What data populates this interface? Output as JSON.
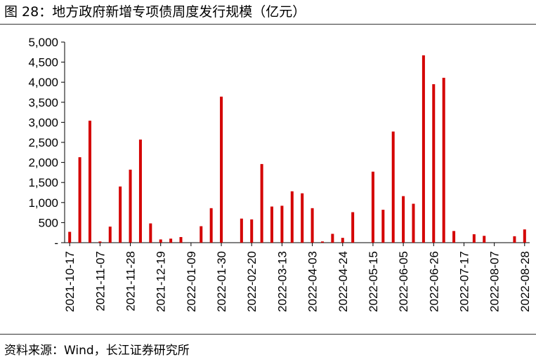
{
  "header": {
    "title": "图 28：地方政府新增专项债周度发行规模（亿元）"
  },
  "footer": {
    "source": "资料来源：Wind，长江证券研究所"
  },
  "colors": {
    "bar": "#d40000",
    "axis": "#000000"
  },
  "chart_data": {
    "type": "bar",
    "title": "图 28：地方政府新增专项债周度发行规模（亿元）",
    "xlabel": "",
    "ylabel": "",
    "ylim": [
      0,
      5000
    ],
    "yticks": [
      0,
      500,
      1000,
      1500,
      2000,
      2500,
      3000,
      3500,
      4000,
      4500,
      5000
    ],
    "ytick_labels": [
      "-",
      "500",
      "1,000",
      "1,500",
      "2,000",
      "2,500",
      "3,000",
      "3,500",
      "4,000",
      "4,500",
      "5,000"
    ],
    "x_tick_labels": [
      "2021-10-17",
      "2021-11-07",
      "2021-11-28",
      "2021-12-19",
      "2022-01-09",
      "2022-01-30",
      "2022-02-20",
      "2022-03-13",
      "2022-04-03",
      "2022-04-24",
      "2022-05-15",
      "2022-06-05",
      "2022-06-26",
      "2022-07-17",
      "2022-08-07",
      "2022-08-28"
    ],
    "grid": false,
    "legend": "none",
    "categories": [
      "2021-10-17",
      "2021-10-24",
      "2021-10-31",
      "2021-11-07",
      "2021-11-14",
      "2021-11-21",
      "2021-11-28",
      "2021-12-05",
      "2021-12-12",
      "2021-12-19",
      "2021-12-26",
      "2022-01-02",
      "2022-01-09",
      "2022-01-16",
      "2022-01-23",
      "2022-01-30",
      "2022-02-06",
      "2022-02-13",
      "2022-02-20",
      "2022-02-27",
      "2022-03-06",
      "2022-03-13",
      "2022-03-20",
      "2022-03-27",
      "2022-04-03",
      "2022-04-10",
      "2022-04-17",
      "2022-04-24",
      "2022-05-01",
      "2022-05-08",
      "2022-05-15",
      "2022-05-22",
      "2022-05-29",
      "2022-06-05",
      "2022-06-12",
      "2022-06-19",
      "2022-06-26",
      "2022-07-03",
      "2022-07-10",
      "2022-07-17",
      "2022-07-24",
      "2022-07-31",
      "2022-08-07",
      "2022-08-14",
      "2022-08-21",
      "2022-08-28"
    ],
    "values": [
      270,
      2130,
      3040,
      30,
      400,
      1400,
      1820,
      2570,
      480,
      80,
      100,
      140,
      0,
      410,
      860,
      3640,
      0,
      600,
      580,
      1960,
      900,
      920,
      1280,
      1230,
      860,
      30,
      220,
      120,
      760,
      0,
      1770,
      820,
      2770,
      1160,
      970,
      4670,
      3950,
      4110,
      290,
      0,
      210,
      170,
      0,
      0,
      160,
      330
    ]
  }
}
